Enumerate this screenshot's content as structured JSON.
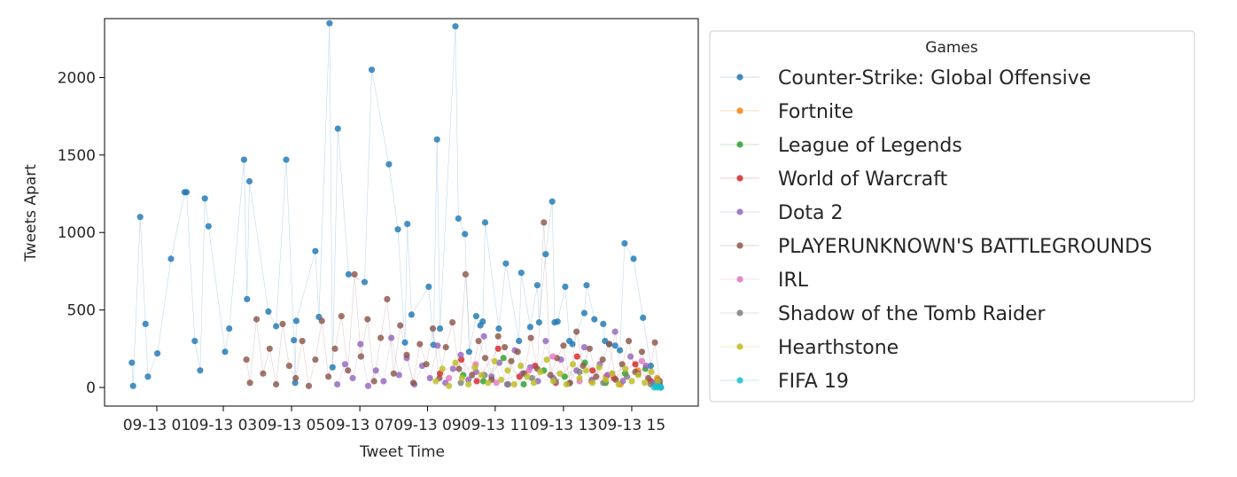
{
  "chart_data": {
    "type": "scatter",
    "title": "",
    "xlabel": "Tweet Time",
    "ylabel": "Tweets Apart",
    "xlim": [
      0,
      100
    ],
    "ylim": [
      -120,
      2380
    ],
    "x_ticks": [
      {
        "x": 8.8,
        "label": "09-13 01"
      },
      {
        "x": 20.0,
        "label": "09-13 03"
      },
      {
        "x": 31.5,
        "label": "09-13 05"
      },
      {
        "x": 43.0,
        "label": "09-13 07"
      },
      {
        "x": 54.4,
        "label": "09-13 09"
      },
      {
        "x": 65.8,
        "label": "09-13 11"
      },
      {
        "x": 77.3,
        "label": "09-13 13"
      },
      {
        "x": 88.8,
        "label": "09-13 15"
      }
    ],
    "y_ticks": [
      0,
      500,
      1000,
      1500,
      2000
    ],
    "grid": false,
    "legend": {
      "title": "Games",
      "placement": "outside-right"
    },
    "series": [
      {
        "name": "Counter-Strike: Global Offensive",
        "color": "#1f77b4",
        "x": [
          4.6,
          4.8,
          6.0,
          6.9,
          7.3,
          8.9,
          11.2,
          13.5,
          13.8,
          15.2,
          16.1,
          16.9,
          17.5,
          20.3,
          21.0,
          23.5,
          24.0,
          24.4,
          27.6,
          28.9,
          30.6,
          31.9,
          32.1,
          32.3,
          35.5,
          36.1,
          37.9,
          38.4,
          39.3,
          41.1,
          43.8,
          45.0,
          47.9,
          49.4,
          50.6,
          51.0,
          51.7,
          54.6,
          55.4,
          56.0,
          56.5,
          59.1,
          59.6,
          60.7,
          61.4,
          62.6,
          63.3,
          63.7,
          64.1,
          66.4,
          67.6,
          69.8,
          70.2,
          71.7,
          72.9,
          73.2,
          74.3,
          75.4,
          75.8,
          76.3,
          77.6,
          78.3,
          78.8,
          80.8,
          81.2,
          82.5,
          84.0,
          84.3,
          85.0,
          86.0,
          86.8,
          87.6,
          89.1,
          90.7,
          92.0,
          93.2,
          93.5,
          93.7
        ],
        "y": [
          160,
          10,
          1100,
          410,
          70,
          220,
          830,
          1260,
          1260,
          300,
          110,
          1220,
          1040,
          230,
          380,
          1470,
          570,
          1330,
          490,
          395,
          1470,
          305,
          30,
          430,
          880,
          455,
          2350,
          130,
          1670,
          730,
          680,
          2050,
          1440,
          1020,
          290,
          1055,
          470,
          650,
          275,
          1600,
          380,
          2330,
          1090,
          990,
          230,
          460,
          400,
          425,
          1065,
          380,
          800,
          300,
          740,
          390,
          660,
          420,
          860,
          1200,
          420,
          425,
          650,
          300,
          280,
          480,
          660,
          440,
          410,
          300,
          280,
          270,
          240,
          930,
          830,
          450,
          140,
          50,
          20,
          0
        ]
      },
      {
        "name": "Fortnite",
        "color": "#ff7f0e",
        "x": [
          82.0,
          84.5,
          86.9,
          89.8,
          92.3,
          93.1
        ],
        "y": [
          40,
          70,
          20,
          110,
          30,
          60
        ]
      },
      {
        "name": "League of Legends",
        "color": "#2ca02c",
        "x": [
          60.4,
          63.8,
          67.2,
          70.6,
          74.0,
          77.5,
          80.9,
          84.4,
          87.7,
          91.1
        ],
        "y": [
          80,
          40,
          190,
          20,
          110,
          70,
          160,
          30,
          90,
          120
        ]
      },
      {
        "name": "World of Warcraft",
        "color": "#d62728",
        "x": [
          56.5,
          60.1,
          62.7,
          66.3,
          69.9,
          72.5,
          76.0,
          79.6,
          82.2,
          85.8,
          89.4,
          92.0
        ],
        "y": [
          90,
          180,
          40,
          250,
          70,
          140,
          30,
          200,
          110,
          60,
          150,
          40
        ]
      },
      {
        "name": "Dota 2",
        "color": "#9467bd",
        "x": [
          39.2,
          40.5,
          41.8,
          43.1,
          44.4,
          45.7,
          47.0,
          48.3,
          49.6,
          50.9,
          52.2,
          53.5,
          54.8,
          56.1,
          57.4,
          58.7,
          60.0,
          61.3,
          62.6,
          63.9,
          65.2,
          66.5,
          67.8,
          69.1,
          70.4,
          71.7,
          73.0,
          74.3,
          75.6,
          76.9,
          78.2,
          79.5,
          80.8,
          82.1,
          83.4,
          84.7,
          86.0,
          87.3,
          88.6,
          89.9,
          91.2,
          92.5
        ],
        "y": [
          20,
          150,
          60,
          280,
          10,
          110,
          40,
          320,
          80,
          190,
          20,
          140,
          60,
          270,
          30,
          120,
          210,
          50,
          100,
          330,
          70,
          160,
          20,
          240,
          90,
          130,
          40,
          300,
          60,
          180,
          25,
          110,
          260,
          50,
          150,
          80,
          360,
          40,
          200,
          90,
          140,
          30
        ]
      },
      {
        "name": "PLAYERUNKNOWN'S BATTLEGROUNDS",
        "color": "#8c564b",
        "x": [
          23.9,
          24.5,
          25.6,
          26.7,
          27.8,
          28.9,
          30.0,
          31.1,
          32.2,
          33.3,
          34.4,
          35.5,
          36.6,
          37.7,
          38.8,
          39.9,
          41.0,
          42.1,
          43.2,
          44.3,
          45.4,
          46.5,
          47.6,
          48.7,
          49.8,
          50.9,
          52.0,
          53.1,
          54.2,
          55.3,
          56.4,
          57.5,
          58.6,
          59.7,
          60.8,
          61.9,
          63.0,
          64.1,
          65.2,
          66.3,
          67.4,
          68.5,
          69.6,
          70.7,
          71.8,
          72.9,
          74.0,
          75.1,
          76.2,
          77.3,
          78.4,
          79.5,
          80.6,
          81.7,
          82.8,
          83.9,
          85.0,
          86.1,
          87.2,
          88.3,
          89.4,
          90.5,
          91.6,
          92.7,
          93.5
        ],
        "y": [
          180,
          30,
          440,
          90,
          250,
          20,
          410,
          140,
          60,
          300,
          10,
          180,
          430,
          70,
          250,
          460,
          110,
          730,
          200,
          440,
          40,
          320,
          570,
          90,
          400,
          210,
          30,
          280,
          150,
          380,
          60,
          260,
          420,
          120,
          730,
          80,
          300,
          190,
          50,
          330,
          260,
          170,
          230,
          90,
          320,
          120,
          1065,
          80,
          190,
          270,
          30,
          360,
          140,
          250,
          70,
          180,
          280,
          50,
          150,
          300,
          100,
          230,
          60,
          290,
          40
        ]
      },
      {
        "name": "IRL",
        "color": "#e377c2",
        "x": [
          58.0,
          62.5,
          66.0,
          71.5,
          75.5,
          80.0,
          85.5,
          90.5
        ],
        "y": [
          60,
          150,
          30,
          110,
          200,
          40,
          90,
          170
        ]
      },
      {
        "name": "Shadow of the Tomb Raider",
        "color": "#7f7f7f",
        "x": [
          60.0,
          64.0,
          68.0,
          72.0,
          76.0,
          80.0,
          84.0,
          88.0,
          92.0
        ],
        "y": [
          30,
          80,
          20,
          60,
          40,
          100,
          30,
          70,
          20
        ]
      },
      {
        "name": "Hearthstone",
        "color": "#bcbd22",
        "x": [
          55.8,
          56.9,
          58.0,
          59.1,
          60.2,
          61.3,
          62.4,
          63.5,
          64.6,
          65.7,
          66.8,
          67.9,
          69.0,
          70.1,
          71.2,
          72.3,
          73.4,
          74.5,
          75.6,
          76.7,
          77.8,
          78.9,
          80.0,
          81.1,
          82.2,
          83.3,
          84.4,
          85.5,
          86.6,
          87.7,
          88.8,
          89.9,
          91.0,
          92.1,
          93.2
        ],
        "y": [
          40,
          120,
          10,
          160,
          60,
          20,
          130,
          80,
          30,
          170,
          50,
          110,
          20,
          140,
          70,
          30,
          100,
          180,
          40,
          90,
          20,
          150,
          60,
          110,
          30,
          130,
          50,
          90,
          20,
          120,
          40,
          80,
          30,
          100,
          40
        ]
      },
      {
        "name": "FIFA 19",
        "color": "#17becf",
        "x": [
          92.6,
          92.9,
          93.2,
          93.5,
          93.7
        ],
        "y": [
          0,
          10,
          0,
          5,
          0
        ]
      }
    ]
  }
}
